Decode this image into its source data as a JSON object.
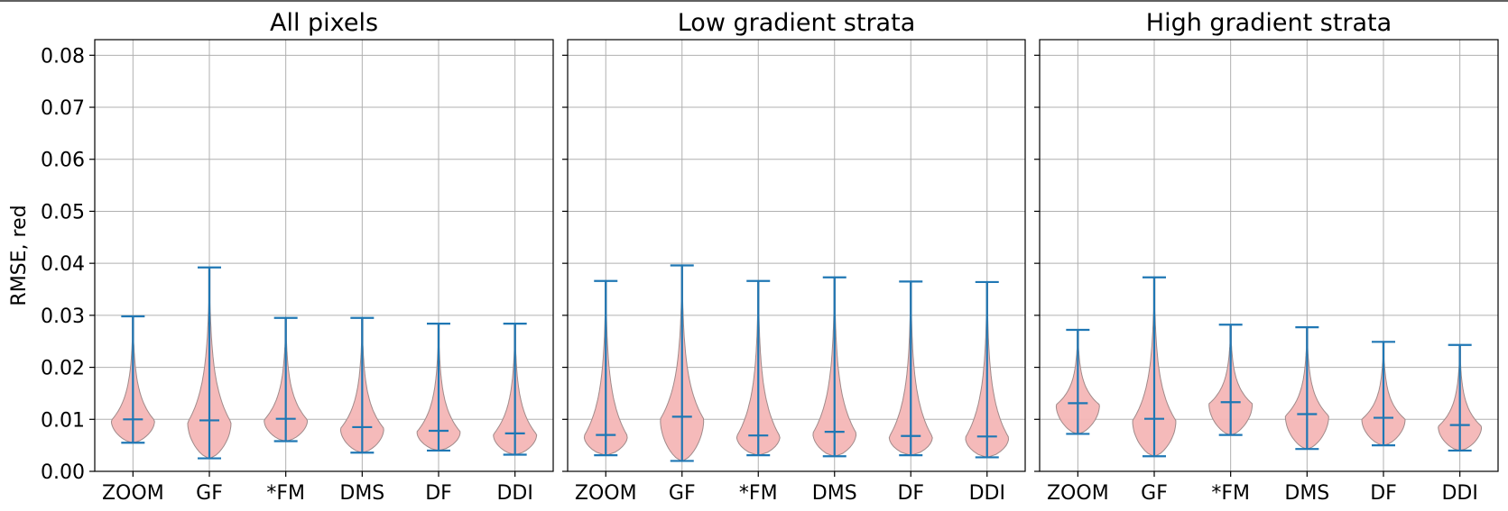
{
  "chart_data": [
    {
      "type": "violin",
      "title": "All pixels",
      "ylabel": "RMSE, red",
      "categories": [
        "ZOOM",
        "GF",
        "*FM",
        "DMS",
        "DF",
        "DDI"
      ],
      "ylim": [
        0,
        0.083
      ],
      "yticks": [
        0.0,
        0.01,
        0.02,
        0.03,
        0.04,
        0.05,
        0.06,
        0.07,
        0.08
      ],
      "ytick_labels": [
        "0.00",
        "0.01",
        "0.02",
        "0.03",
        "0.04",
        "0.05",
        "0.06",
        "0.07",
        "0.08"
      ],
      "grid": true,
      "series": [
        {
          "min": 0.0055,
          "median": 0.01,
          "max": 0.0298
        },
        {
          "min": 0.0025,
          "median": 0.0098,
          "max": 0.0392
        },
        {
          "min": 0.0058,
          "median": 0.0101,
          "max": 0.0295
        },
        {
          "min": 0.0036,
          "median": 0.0085,
          "max": 0.0295
        },
        {
          "min": 0.004,
          "median": 0.0078,
          "max": 0.0284
        },
        {
          "min": 0.0032,
          "median": 0.0073,
          "max": 0.0284
        }
      ]
    },
    {
      "type": "violin",
      "title": "Low gradient strata",
      "categories": [
        "ZOOM",
        "GF",
        "*FM",
        "DMS",
        "DF",
        "DDI"
      ],
      "ylim": [
        0,
        0.083
      ],
      "grid": true,
      "series": [
        {
          "min": 0.0031,
          "median": 0.007,
          "max": 0.0366
        },
        {
          "min": 0.002,
          "median": 0.0105,
          "max": 0.0396
        },
        {
          "min": 0.0031,
          "median": 0.0069,
          "max": 0.0366
        },
        {
          "min": 0.0029,
          "median": 0.0076,
          "max": 0.0373
        },
        {
          "min": 0.0031,
          "median": 0.0068,
          "max": 0.0365
        },
        {
          "min": 0.0027,
          "median": 0.0067,
          "max": 0.0364
        }
      ]
    },
    {
      "type": "violin",
      "title": "High gradient strata",
      "categories": [
        "ZOOM",
        "GF",
        "*FM",
        "DMS",
        "DF",
        "DDI"
      ],
      "ylim": [
        0,
        0.083
      ],
      "grid": true,
      "series": [
        {
          "min": 0.0072,
          "median": 0.0131,
          "max": 0.0272
        },
        {
          "min": 0.0029,
          "median": 0.0101,
          "max": 0.0373
        },
        {
          "min": 0.007,
          "median": 0.0133,
          "max": 0.0282
        },
        {
          "min": 0.0043,
          "median": 0.011,
          "max": 0.0277
        },
        {
          "min": 0.005,
          "median": 0.0103,
          "max": 0.0249
        },
        {
          "min": 0.004,
          "median": 0.0089,
          "max": 0.0243
        }
      ]
    }
  ]
}
